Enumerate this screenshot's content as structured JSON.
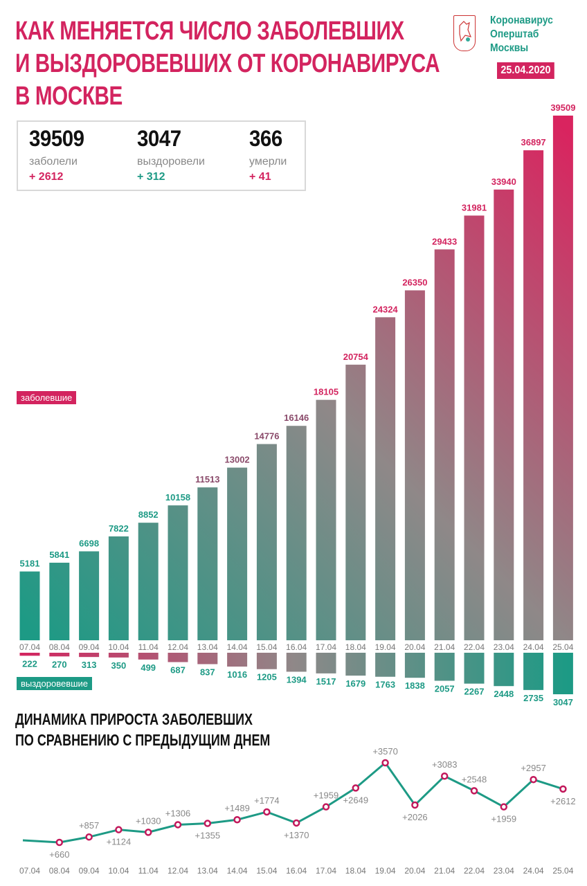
{
  "header": {
    "title_lines": [
      "КАК МЕНЯЕТСЯ ЧИСЛО ЗАБОЛЕВШИХ",
      "И ВЫЗДОРОВЕВШИХ ОТ КОРОНАВИРУСА",
      "В МОСКВЕ"
    ],
    "org_lines": [
      "Коронавирус",
      "Оперштаб",
      "Москвы"
    ],
    "date": "25.04.2020",
    "logo": "Moscow coat of arms"
  },
  "stats": [
    {
      "value": "39509",
      "label": "заболели",
      "delta": "+ 2612",
      "color": "#d3245f"
    },
    {
      "value": "3047",
      "label": "выздоровели",
      "delta": "+ 312",
      "color": "#1d9a85"
    },
    {
      "value": "366",
      "label": "умерли",
      "delta": "+ 41",
      "color": "#d3245f"
    }
  ],
  "legend": {
    "infected": "заболевшие",
    "recovered": "выздоровевшие"
  },
  "subtitle_lines": [
    "ДИНАМИКА ПРИРОСТА ЗАБОЛЕВШИХ",
    "ПО СРАВНЕНИЮ С ПРЕДЫДУЩИМ ДНЕМ"
  ],
  "colors": {
    "pink": "#d3245f",
    "teal": "#1d9a85",
    "gray": "#8a8a8a"
  },
  "chart_data": [
    {
      "type": "bar",
      "title": "Заболевшие и выздоровевшие",
      "categories": [
        "07.04",
        "08.04",
        "09.04",
        "10.04",
        "11.04",
        "12.04",
        "13.04",
        "14.04",
        "15.04",
        "16.04",
        "17.04",
        "18.04",
        "19.04",
        "20.04",
        "21.04",
        "22.04",
        "23.04",
        "24.04",
        "25.04"
      ],
      "series": [
        {
          "name": "заболевшие",
          "values": [
            5181,
            5841,
            6698,
            7822,
            8852,
            10158,
            11513,
            13002,
            14776,
            16146,
            18105,
            20754,
            24324,
            26350,
            29433,
            31981,
            33940,
            36897,
            39509
          ]
        },
        {
          "name": "выздоровевшие",
          "values": [
            222,
            270,
            313,
            350,
            499,
            687,
            837,
            1016,
            1205,
            1394,
            1517,
            1679,
            1763,
            1838,
            2057,
            2267,
            2448,
            2735,
            3047
          ]
        }
      ]
    },
    {
      "type": "line",
      "title": "Динамика прироста заболевших по сравнению с предыдущим днем",
      "categories": [
        "07.04",
        "08.04",
        "09.04",
        "10.04",
        "11.04",
        "12.04",
        "13.04",
        "14.04",
        "15.04",
        "16.04",
        "17.04",
        "18.04",
        "19.04",
        "20.04",
        "21.04",
        "22.04",
        "23.04",
        "24.04",
        "25.04"
      ],
      "values": [
        null,
        660,
        857,
        1124,
        1030,
        1306,
        1355,
        1489,
        1774,
        1370,
        1959,
        2649,
        3570,
        2026,
        3083,
        2548,
        1959,
        2957,
        2612
      ],
      "labels": [
        "",
        "+660",
        "+857",
        "+1124",
        "+1030",
        "+1306",
        "+1355",
        "+1489",
        "+1774",
        "+1370",
        "+1959",
        "+2649",
        "+3570",
        "+2026",
        "+3083",
        "+2548",
        "+1959",
        "+2957",
        "+2612"
      ]
    }
  ]
}
